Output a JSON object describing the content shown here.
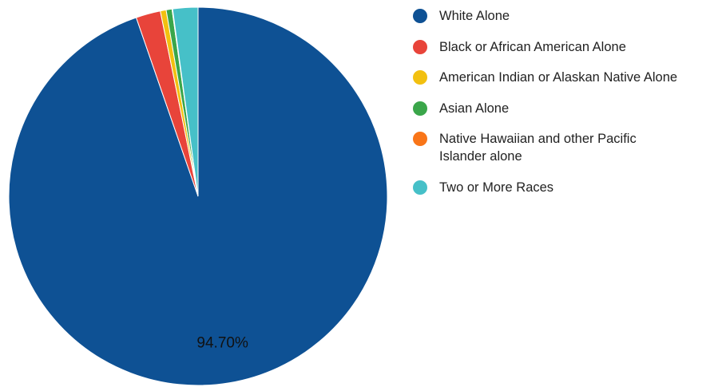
{
  "chart_data": {
    "type": "pie",
    "title": "",
    "categories": [
      "White Alone",
      "Black or African American Alone",
      "American Indian or Alaskan Native Alone",
      "Asian Alone",
      "Native Hawaiian and other Pacific Islander alone",
      "Two or More Races"
    ],
    "legend_lines": [
      [
        "White Alone"
      ],
      [
        "Black or African American Alone"
      ],
      [
        "American Indian or Alaskan Native Alone"
      ],
      [
        "Asian Alone"
      ],
      [
        "Native Hawaiian and other Pacific",
        "Islander alone"
      ],
      [
        "Two or More Races"
      ]
    ],
    "values": [
      94.7,
      2.1,
      0.5,
      0.5,
      0.05,
      2.15
    ],
    "colors": [
      "#0e5194",
      "#e8443a",
      "#f2c010",
      "#3aa64a",
      "#f97518",
      "#46c0c8"
    ],
    "data_labels": [
      "94.70%",
      "",
      "",
      "",
      "",
      ""
    ],
    "legend_position": "right"
  }
}
